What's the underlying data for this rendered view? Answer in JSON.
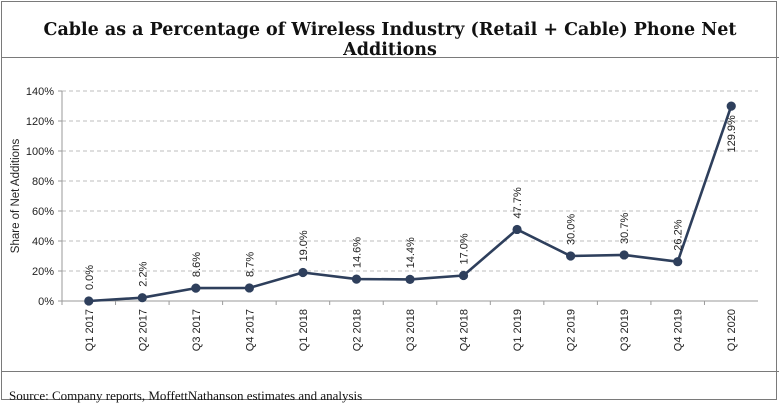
{
  "title": "Cable as a Percentage of Wireless Industry (Retail + Cable) Phone Net Additions",
  "source": "Source: Company reports, MoffettNathanson estimates and analysis",
  "chart_data": {
    "type": "line",
    "title": "Cable as a Percentage of Wireless Industry (Retail + Cable) Phone Net Additions",
    "xlabel": "",
    "ylabel": "Share of Net Additions",
    "ylim": [
      0,
      140
    ],
    "yticks": [
      0,
      20,
      40,
      60,
      80,
      100,
      120,
      140
    ],
    "ytick_labels": [
      "0%",
      "20%",
      "40%",
      "60%",
      "80%",
      "100%",
      "120%",
      "140%"
    ],
    "grid": true,
    "legend": "none",
    "categories": [
      "Q1 2017",
      "Q2 2017",
      "Q3 2017",
      "Q4 2017",
      "Q1 2018",
      "Q2 2018",
      "Q3 2018",
      "Q4 2018",
      "Q1 2019",
      "Q2 2019",
      "Q3 2019",
      "Q4 2019",
      "Q1 2020"
    ],
    "values": [
      0.0,
      2.2,
      8.6,
      8.7,
      19.0,
      14.6,
      14.4,
      17.0,
      47.7,
      30.0,
      30.7,
      26.2,
      129.9
    ],
    "data_labels": [
      "0.0%",
      "2.2%",
      "8.6%",
      "8.7%",
      "19.0%",
      "14.6%",
      "14.4%",
      "17.0%",
      "47.7%",
      "30.0%",
      "30.7%",
      "26.2%",
      "129.9%"
    ],
    "line_color": "#2e3f5c"
  }
}
